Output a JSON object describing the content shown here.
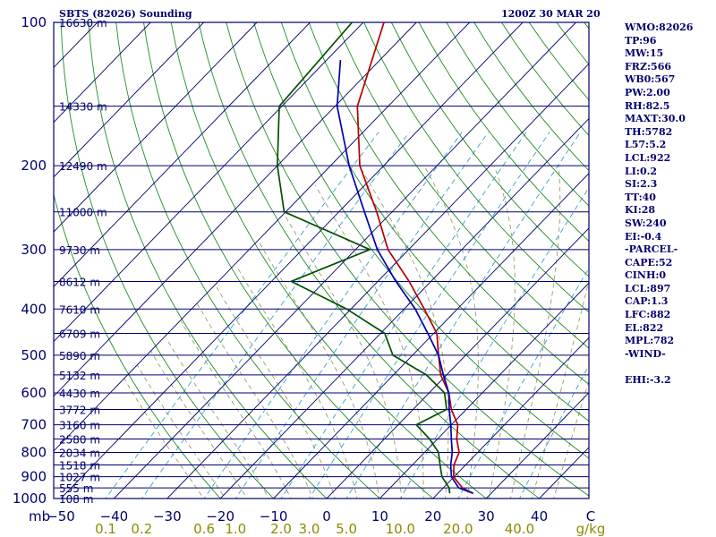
{
  "header": {
    "title": "SBTS (82026) Sounding",
    "time": "1200Z 30 MAR 20"
  },
  "indices": [
    "WMO:82026",
    "TP:96",
    "MW:15",
    "FRZ:566",
    "WB0:567",
    "PW:2.00",
    "RH:82.5",
    "MAXT:30.0",
    "TH:5782",
    "L57:5.2",
    "LCL:922",
    "LI:0.2",
    "SI:2.3",
    "TT:40",
    "KI:28",
    "SW:240",
    "EI:-0.4",
    "-PARCEL-",
    "CAPE:52",
    "CINH:0",
    "LCL:897",
    "CAP:1.3",
    "LFC:882",
    "EL:822",
    "MPL:782",
    "-WIND-",
    "",
    "EHI:-3.2"
  ],
  "colors": {
    "isobar": "#00006e",
    "dry_adiabat": "#228b22",
    "moist_adiabat": "#9b9b6b",
    "mixing_ratio": "#3aa0c8",
    "temperature": "#b40000",
    "dewpoint": "#005000",
    "parcel": "#0000b4",
    "text": "#00006e",
    "mixing_ratio_labels": "#8b8b00"
  },
  "chart_data": {
    "type": "line",
    "chart_kind": "skew-t log-p sounding",
    "pressure_unit": "mb",
    "temperature_unit": "C",
    "pressure_axis_label": "mb",
    "mixing_ratio_unit": "g/kg",
    "pressure_range": [
      100,
      1000
    ],
    "temperature_range": [
      -50,
      50
    ],
    "pressure_ticks": [
      100,
      200,
      300,
      400,
      500,
      600,
      700,
      800,
      900,
      1000
    ],
    "temperature_ticks": [
      -50,
      -40,
      -30,
      -20,
      -10,
      0,
      10,
      20,
      30,
      40
    ],
    "temperature_tick_labels": [
      "−50",
      "−40",
      "−30",
      "−20",
      "−10",
      "0",
      "10",
      "20",
      "30",
      "40"
    ],
    "axis_end_label": "C",
    "mixing_ratio_ticks": [
      "0.1",
      "0.2",
      "0.6",
      "1.0",
      "2.0",
      "3.0",
      "5.0",
      "10.0",
      "20.0",
      "40.0"
    ],
    "height_levels": [
      {
        "p": 100,
        "label": "16630 m"
      },
      {
        "p": 150,
        "label": "14330 m"
      },
      {
        "p": 200,
        "label": "12490 m"
      },
      {
        "p": 250,
        "label": "11000 m"
      },
      {
        "p": 300,
        "label": "9730 m"
      },
      {
        "p": 350,
        "label": "8612 m"
      },
      {
        "p": 400,
        "label": "7610 m"
      },
      {
        "p": 450,
        "label": "6709 m"
      },
      {
        "p": 500,
        "label": "5890 m"
      },
      {
        "p": 550,
        "label": "5132 m"
      },
      {
        "p": 600,
        "label": "4430 m"
      },
      {
        "p": 650,
        "label": "3772 m"
      },
      {
        "p": 700,
        "label": "3160 m"
      },
      {
        "p": 750,
        "label": "2580 m"
      },
      {
        "p": 800,
        "label": "2034 m"
      },
      {
        "p": 850,
        "label": "1518 m"
      },
      {
        "p": 900,
        "label": "1027 m"
      },
      {
        "p": 950,
        "label": "555 m"
      },
      {
        "p": 1000,
        "label": "108 m"
      }
    ],
    "series": [
      {
        "key": "temperature",
        "points": [
          {
            "p": 100,
            "t": -76.1
          },
          {
            "p": 150,
            "t": -65.8
          },
          {
            "p": 200,
            "t": -54.5
          },
          {
            "p": 250,
            "t": -42.9
          },
          {
            "p": 300,
            "t": -33.9
          },
          {
            "p": 350,
            "t": -24.1
          },
          {
            "p": 400,
            "t": -16.2
          },
          {
            "p": 450,
            "t": -9.4
          },
          {
            "p": 500,
            "t": -5.1
          },
          {
            "p": 550,
            "t": -1.1
          },
          {
            "p": 600,
            "t": 3.7
          },
          {
            "p": 650,
            "t": 7.2
          },
          {
            "p": 700,
            "t": 11.2
          },
          {
            "p": 750,
            "t": 13.6
          },
          {
            "p": 800,
            "t": 16.5
          },
          {
            "p": 850,
            "t": 17.8
          },
          {
            "p": 900,
            "t": 19.9
          },
          {
            "p": 950,
            "t": 23.6
          },
          {
            "p": 975,
            "t": 26.6
          }
        ]
      },
      {
        "key": "dewpoint",
        "points": [
          {
            "p": 100,
            "t": -82.1
          },
          {
            "p": 150,
            "t": -80.5
          },
          {
            "p": 200,
            "t": -70.0
          },
          {
            "p": 250,
            "t": -60.3
          },
          {
            "p": 300,
            "t": -37.3
          },
          {
            "p": 350,
            "t": -46.3
          },
          {
            "p": 400,
            "t": -30.8
          },
          {
            "p": 450,
            "t": -19.2
          },
          {
            "p": 500,
            "t": -13.7
          },
          {
            "p": 550,
            "t": -3.8
          },
          {
            "p": 600,
            "t": 2.9
          },
          {
            "p": 650,
            "t": 6.3
          },
          {
            "p": 700,
            "t": 3.4
          },
          {
            "p": 750,
            "t": 8.5
          },
          {
            "p": 800,
            "t": 12.6
          },
          {
            "p": 850,
            "t": 15.2
          },
          {
            "p": 900,
            "t": 17.7
          },
          {
            "p": 950,
            "t": 21.1
          },
          {
            "p": 975,
            "t": 22.2
          }
        ]
      },
      {
        "key": "parcel",
        "points": [
          {
            "p": 120,
            "t": -77.4
          },
          {
            "p": 150,
            "t": -69.6
          },
          {
            "p": 200,
            "t": -56.5
          },
          {
            "p": 250,
            "t": -45.2
          },
          {
            "p": 300,
            "t": -35.9
          },
          {
            "p": 350,
            "t": -26.6
          },
          {
            "p": 400,
            "t": -17.9
          },
          {
            "p": 450,
            "t": -11.1
          },
          {
            "p": 500,
            "t": -5.1
          },
          {
            "p": 550,
            "t": -0.6
          },
          {
            "p": 600,
            "t": 3.7
          },
          {
            "p": 650,
            "t": 6.8
          },
          {
            "p": 700,
            "t": 9.9
          },
          {
            "p": 750,
            "t": 12.6
          },
          {
            "p": 800,
            "t": 15.2
          },
          {
            "p": 850,
            "t": 17.2
          },
          {
            "p": 900,
            "t": 19.5
          },
          {
            "p": 950,
            "t": 22.9
          },
          {
            "p": 975,
            "t": 26.6
          }
        ]
      }
    ]
  }
}
